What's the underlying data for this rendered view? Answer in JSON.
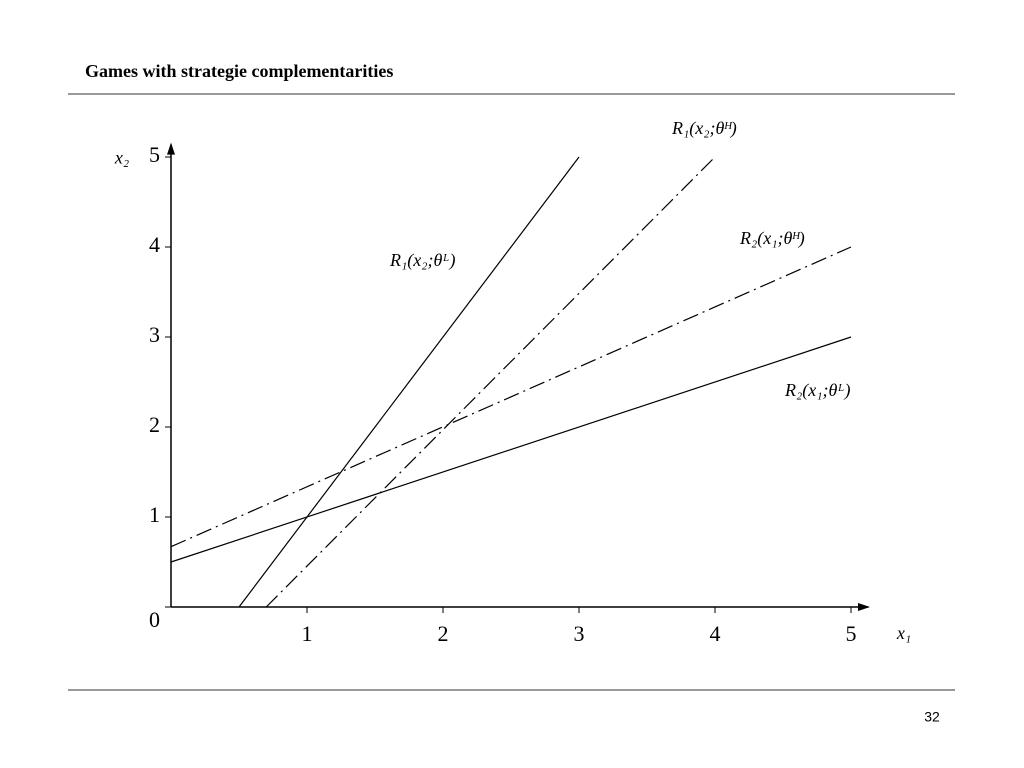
{
  "header": {
    "title": "Games with strategie complementarities"
  },
  "chart_data": {
    "type": "line",
    "xlabel": "x₁",
    "ylabel": "x₂",
    "xlim": [
      0,
      5.14
    ],
    "ylim": [
      0,
      5.16
    ],
    "xticks": [
      1,
      2,
      3,
      4,
      5
    ],
    "yticks": [
      0,
      1,
      2,
      3,
      4,
      5
    ],
    "series": [
      {
        "name": "R₁(x₂;θᴸ)",
        "color": "#000000",
        "style": "solid",
        "x": [
          0.5,
          3
        ],
        "values": [
          0,
          5
        ]
      },
      {
        "name": "R₁(x₂;θᴴ)",
        "color": "#000000",
        "style": "dashdot",
        "x": [
          0.7,
          4
        ],
        "values": [
          0,
          5
        ]
      },
      {
        "name": "R₂(x₁;θᴸ)",
        "color": "#000000",
        "style": "solid",
        "x": [
          0,
          5
        ],
        "values": [
          0.5,
          3
        ]
      },
      {
        "name": "R₂(x₁;θᴴ)",
        "color": "#000000",
        "style": "dashdot",
        "x": [
          0,
          5
        ],
        "values": [
          0.67,
          4
        ]
      }
    ]
  },
  "footer": {
    "page_number": 32
  }
}
